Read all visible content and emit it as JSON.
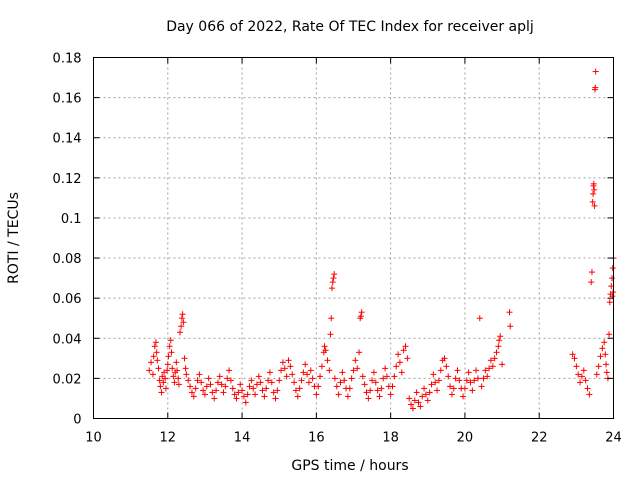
{
  "chart_data": {
    "type": "scatter",
    "title": "Day 066 of 2022, Rate Of TEC Index for receiver aplj",
    "xlabel": "GPS time / hours",
    "ylabel": "ROTI / TECUs",
    "xlim": [
      10,
      24
    ],
    "ylim": [
      0,
      0.18
    ],
    "x_ticks": [
      "10",
      "12",
      "14",
      "16",
      "18",
      "20",
      "22",
      "24"
    ],
    "y_ticks": [
      "0",
      "0.02",
      "0.04",
      "0.06",
      "0.08",
      "0.1",
      "0.12",
      "0.14",
      "0.16",
      "0.18"
    ],
    "grid": true,
    "marker": "+",
    "color": "#ff0000",
    "series": [
      {
        "points": [
          [
            11.5,
            0.024
          ],
          [
            11.55,
            0.028
          ],
          [
            11.6,
            0.022
          ],
          [
            11.62,
            0.031
          ],
          [
            11.65,
            0.036
          ],
          [
            11.68,
            0.038
          ],
          [
            11.7,
            0.033
          ],
          [
            11.72,
            0.029
          ],
          [
            11.75,
            0.025
          ],
          [
            11.78,
            0.019
          ],
          [
            11.8,
            0.016
          ],
          [
            11.83,
            0.013
          ],
          [
            11.85,
            0.021
          ],
          [
            11.88,
            0.018
          ],
          [
            11.9,
            0.023
          ],
          [
            11.93,
            0.02
          ],
          [
            11.95,
            0.015
          ],
          [
            11.98,
            0.024
          ],
          [
            12.0,
            0.027
          ],
          [
            12.02,
            0.031
          ],
          [
            12.05,
            0.036
          ],
          [
            12.08,
            0.039
          ],
          [
            12.1,
            0.033
          ],
          [
            12.12,
            0.025
          ],
          [
            12.15,
            0.021
          ],
          [
            12.18,
            0.018
          ],
          [
            12.2,
            0.023
          ],
          [
            12.23,
            0.028
          ],
          [
            12.25,
            0.024
          ],
          [
            12.28,
            0.02
          ],
          [
            12.3,
            0.017
          ],
          [
            12.33,
            0.043
          ],
          [
            12.36,
            0.046
          ],
          [
            12.38,
            0.05
          ],
          [
            12.4,
            0.052
          ],
          [
            12.42,
            0.048
          ],
          [
            12.45,
            0.03
          ],
          [
            12.48,
            0.025
          ],
          [
            12.5,
            0.022
          ],
          [
            12.55,
            0.019
          ],
          [
            12.6,
            0.016
          ],
          [
            12.65,
            0.013
          ],
          [
            12.7,
            0.011
          ],
          [
            12.75,
            0.015
          ],
          [
            12.8,
            0.019
          ],
          [
            12.85,
            0.022
          ],
          [
            12.9,
            0.018
          ],
          [
            12.95,
            0.014
          ],
          [
            13.0,
            0.012
          ],
          [
            13.05,
            0.016
          ],
          [
            13.1,
            0.02
          ],
          [
            13.15,
            0.017
          ],
          [
            13.2,
            0.013
          ],
          [
            13.25,
            0.01
          ],
          [
            13.3,
            0.014
          ],
          [
            13.35,
            0.018
          ],
          [
            13.4,
            0.021
          ],
          [
            13.45,
            0.017
          ],
          [
            13.5,
            0.013
          ],
          [
            13.55,
            0.016
          ],
          [
            13.6,
            0.02
          ],
          [
            13.65,
            0.024
          ],
          [
            13.7,
            0.019
          ],
          [
            13.75,
            0.015
          ],
          [
            13.8,
            0.012
          ],
          [
            13.85,
            0.01
          ],
          [
            13.9,
            0.013
          ],
          [
            13.95,
            0.017
          ],
          [
            14.0,
            0.014
          ],
          [
            14.05,
            0.011
          ],
          [
            14.1,
            0.008
          ],
          [
            14.15,
            0.012
          ],
          [
            14.2,
            0.016
          ],
          [
            14.25,
            0.019
          ],
          [
            14.3,
            0.015
          ],
          [
            14.35,
            0.012
          ],
          [
            14.4,
            0.017
          ],
          [
            14.45,
            0.021
          ],
          [
            14.5,
            0.018
          ],
          [
            14.55,
            0.014
          ],
          [
            14.6,
            0.011
          ],
          [
            14.65,
            0.015
          ],
          [
            14.7,
            0.019
          ],
          [
            14.75,
            0.023
          ],
          [
            14.8,
            0.018
          ],
          [
            14.85,
            0.013
          ],
          [
            14.9,
            0.01
          ],
          [
            14.95,
            0.014
          ],
          [
            15.0,
            0.019
          ],
          [
            15.05,
            0.024
          ],
          [
            15.1,
            0.028
          ],
          [
            15.15,
            0.025
          ],
          [
            15.2,
            0.021
          ],
          [
            15.25,
            0.029
          ],
          [
            15.3,
            0.026
          ],
          [
            15.35,
            0.022
          ],
          [
            15.4,
            0.018
          ],
          [
            15.45,
            0.014
          ],
          [
            15.5,
            0.011
          ],
          [
            15.55,
            0.015
          ],
          [
            15.6,
            0.019
          ],
          [
            15.65,
            0.023
          ],
          [
            15.7,
            0.027
          ],
          [
            15.75,
            0.022
          ],
          [
            15.8,
            0.018
          ],
          [
            15.85,
            0.024
          ],
          [
            15.9,
            0.02
          ],
          [
            15.95,
            0.016
          ],
          [
            16.0,
            0.012
          ],
          [
            16.05,
            0.016
          ],
          [
            16.1,
            0.021
          ],
          [
            16.15,
            0.026
          ],
          [
            16.2,
            0.033
          ],
          [
            16.22,
            0.036
          ],
          [
            16.25,
            0.034
          ],
          [
            16.3,
            0.029
          ],
          [
            16.35,
            0.024
          ],
          [
            16.38,
            0.042
          ],
          [
            16.4,
            0.05
          ],
          [
            16.42,
            0.065
          ],
          [
            16.44,
            0.068
          ],
          [
            16.46,
            0.07
          ],
          [
            16.48,
            0.072
          ],
          [
            16.5,
            0.02
          ],
          [
            16.55,
            0.016
          ],
          [
            16.6,
            0.012
          ],
          [
            16.65,
            0.018
          ],
          [
            16.7,
            0.023
          ],
          [
            16.75,
            0.019
          ],
          [
            16.8,
            0.015
          ],
          [
            16.85,
            0.011
          ],
          [
            16.9,
            0.015
          ],
          [
            16.95,
            0.02
          ],
          [
            17.0,
            0.024
          ],
          [
            17.05,
            0.029
          ],
          [
            17.1,
            0.025
          ],
          [
            17.15,
            0.033
          ],
          [
            17.18,
            0.05
          ],
          [
            17.2,
            0.051
          ],
          [
            17.22,
            0.053
          ],
          [
            17.25,
            0.021
          ],
          [
            17.3,
            0.017
          ],
          [
            17.35,
            0.013
          ],
          [
            17.4,
            0.01
          ],
          [
            17.45,
            0.014
          ],
          [
            17.5,
            0.019
          ],
          [
            17.55,
            0.023
          ],
          [
            17.6,
            0.018
          ],
          [
            17.65,
            0.014
          ],
          [
            17.7,
            0.011
          ],
          [
            17.75,
            0.015
          ],
          [
            17.8,
            0.02
          ],
          [
            17.85,
            0.025
          ],
          [
            17.9,
            0.021
          ],
          [
            17.95,
            0.016
          ],
          [
            18.0,
            0.012
          ],
          [
            18.05,
            0.016
          ],
          [
            18.1,
            0.021
          ],
          [
            18.15,
            0.026
          ],
          [
            18.2,
            0.032
          ],
          [
            18.25,
            0.028
          ],
          [
            18.3,
            0.023
          ],
          [
            18.35,
            0.034
          ],
          [
            18.4,
            0.036
          ],
          [
            18.45,
            0.03
          ],
          [
            18.5,
            0.01
          ],
          [
            18.55,
            0.007
          ],
          [
            18.6,
            0.005
          ],
          [
            18.65,
            0.009
          ],
          [
            18.7,
            0.013
          ],
          [
            18.75,
            0.008
          ],
          [
            18.8,
            0.006
          ],
          [
            18.85,
            0.011
          ],
          [
            18.9,
            0.015
          ],
          [
            18.95,
            0.012
          ],
          [
            19.0,
            0.009
          ],
          [
            19.05,
            0.013
          ],
          [
            19.1,
            0.017
          ],
          [
            19.15,
            0.022
          ],
          [
            19.2,
            0.018
          ],
          [
            19.25,
            0.014
          ],
          [
            19.3,
            0.019
          ],
          [
            19.35,
            0.024
          ],
          [
            19.4,
            0.029
          ],
          [
            19.45,
            0.03
          ],
          [
            19.5,
            0.026
          ],
          [
            19.55,
            0.021
          ],
          [
            19.6,
            0.016
          ],
          [
            19.65,
            0.012
          ],
          [
            19.7,
            0.015
          ],
          [
            19.75,
            0.02
          ],
          [
            19.8,
            0.024
          ],
          [
            19.85,
            0.019
          ],
          [
            19.9,
            0.015
          ],
          [
            19.95,
            0.011
          ],
          [
            20.0,
            0.015
          ],
          [
            20.05,
            0.019
          ],
          [
            20.1,
            0.023
          ],
          [
            20.15,
            0.018
          ],
          [
            20.2,
            0.014
          ],
          [
            20.25,
            0.019
          ],
          [
            20.3,
            0.024
          ],
          [
            20.35,
            0.02
          ],
          [
            20.4,
            0.05
          ],
          [
            20.45,
            0.016
          ],
          [
            20.5,
            0.02
          ],
          [
            20.55,
            0.024
          ],
          [
            20.6,
            0.021
          ],
          [
            20.65,
            0.025
          ],
          [
            20.7,
            0.029
          ],
          [
            20.75,
            0.026
          ],
          [
            20.8,
            0.03
          ],
          [
            20.85,
            0.033
          ],
          [
            20.9,
            0.036
          ],
          [
            20.92,
            0.039
          ],
          [
            20.95,
            0.041
          ],
          [
            21.0,
            0.027
          ],
          [
            21.2,
            0.053
          ],
          [
            21.22,
            0.046
          ],
          [
            22.9,
            0.032
          ],
          [
            22.95,
            0.03
          ],
          [
            23.0,
            0.026
          ],
          [
            23.05,
            0.022
          ],
          [
            23.1,
            0.018
          ],
          [
            23.15,
            0.021
          ],
          [
            23.2,
            0.024
          ],
          [
            23.25,
            0.019
          ],
          [
            23.3,
            0.015
          ],
          [
            23.35,
            0.012
          ],
          [
            23.4,
            0.068
          ],
          [
            23.42,
            0.073
          ],
          [
            23.44,
            0.108
          ],
          [
            23.45,
            0.112
          ],
          [
            23.46,
            0.116
          ],
          [
            23.47,
            0.117
          ],
          [
            23.48,
            0.114
          ],
          [
            23.49,
            0.106
          ],
          [
            23.5,
            0.164
          ],
          [
            23.51,
            0.165
          ],
          [
            23.52,
            0.173
          ],
          [
            23.55,
            0.022
          ],
          [
            23.6,
            0.026
          ],
          [
            23.65,
            0.031
          ],
          [
            23.7,
            0.035
          ],
          [
            23.75,
            0.038
          ],
          [
            23.78,
            0.032
          ],
          [
            23.8,
            0.027
          ],
          [
            23.82,
            0.023
          ],
          [
            23.85,
            0.02
          ],
          [
            23.88,
            0.042
          ],
          [
            23.9,
            0.058
          ],
          [
            23.92,
            0.062
          ],
          [
            23.94,
            0.066
          ],
          [
            23.96,
            0.07
          ],
          [
            23.98,
            0.075
          ],
          [
            24.0,
            0.08
          ],
          [
            23.97,
            0.061
          ],
          [
            23.99,
            0.063
          ]
        ]
      }
    ]
  }
}
